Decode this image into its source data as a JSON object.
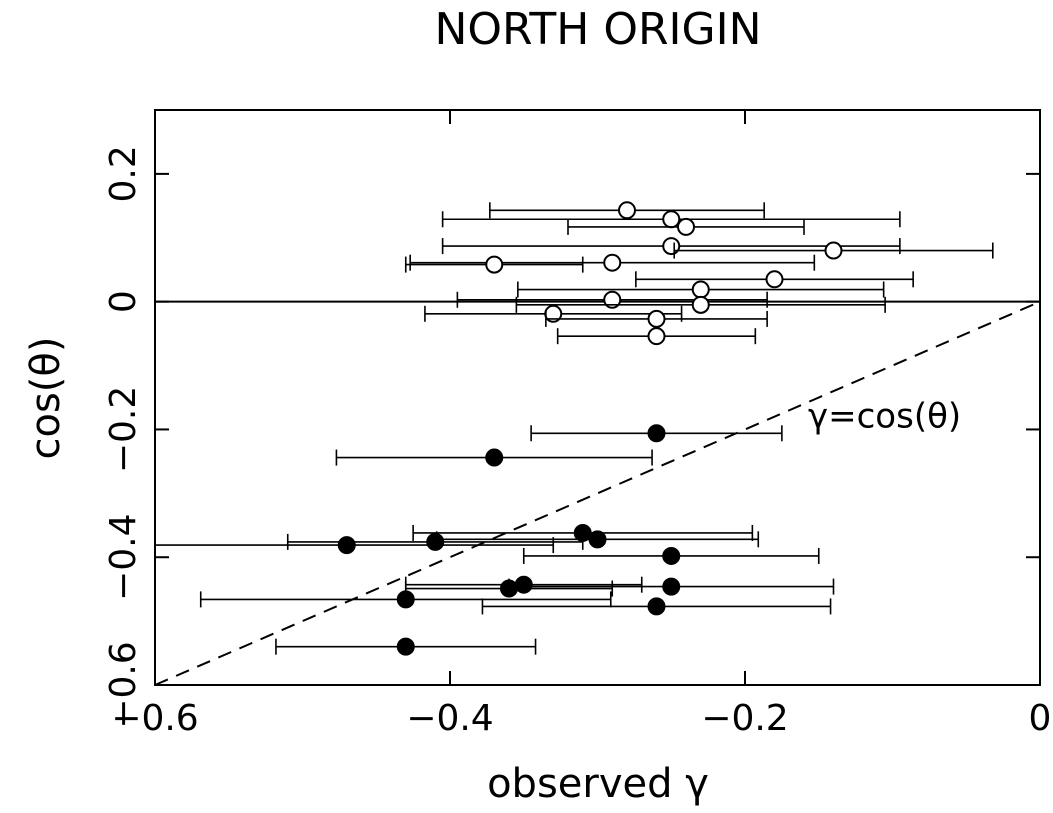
{
  "chart_data": {
    "type": "scatter",
    "title": "NORTH ORIGIN",
    "xlabel": "observed γ",
    "ylabel": "cos(θ)",
    "xlim": [
      -0.6,
      0
    ],
    "ylim": [
      -0.6,
      0.3
    ],
    "xticks": [
      {
        "value": -0.6,
        "label": "−0.6"
      },
      {
        "value": -0.4,
        "label": "−0.4"
      },
      {
        "value": -0.2,
        "label": "−0.2"
      },
      0
    ],
    "yticks": [
      {
        "value": -0.6,
        "label": "−0.6"
      },
      {
        "value": -0.4,
        "label": "−0.4"
      },
      {
        "value": -0.2,
        "label": "−0.2"
      },
      0,
      0.2
    ],
    "color": "#000000",
    "series": [
      {
        "marker": "open",
        "x": [
          -0.28,
          -0.25,
          -0.24,
          -0.25,
          -0.14,
          -0.29,
          -0.37,
          -0.18,
          -0.23,
          -0.29,
          -0.23,
          -0.33,
          -0.26,
          -0.26
        ],
        "values": [
          0.143,
          0.129,
          0.117,
          0.087,
          0.08,
          0.061,
          0.058,
          0.035,
          0.019,
          0.003,
          -0.005,
          -0.019,
          -0.027,
          -0.054
        ],
        "xerr": [
          0.093,
          0.155,
          0.08,
          0.155,
          0.108,
          0.137,
          0.06,
          0.094,
          0.124,
          0.105,
          0.125,
          0.087,
          0.075,
          0.067
        ]
      },
      {
        "marker": "filled",
        "x": [
          -0.26,
          -0.37,
          -0.31,
          -0.3,
          -0.41,
          -0.47,
          -0.25,
          -0.25,
          -0.35,
          -0.36,
          -0.43,
          -0.26,
          -0.43
        ],
        "values": [
          -0.206,
          -0.244,
          -0.362,
          -0.372,
          -0.376,
          -0.381,
          -0.398,
          -0.446,
          -0.443,
          -0.449,
          -0.466,
          -0.477,
          -0.54
        ],
        "xerr": [
          0.085,
          0.107,
          0.115,
          0.109,
          0.1,
          0.14,
          0.1,
          0.11,
          0.08,
          0.07,
          0.139,
          0.118,
          0.088
        ]
      }
    ],
    "lines": [
      {
        "x": [
          -0.6,
          0
        ],
        "y": [
          -0.6,
          0
        ],
        "style": "dashed",
        "label": "γ=cos(θ)"
      },
      {
        "x": [
          -0.6,
          0
        ],
        "y": [
          0,
          0
        ],
        "style": "solid"
      }
    ]
  }
}
